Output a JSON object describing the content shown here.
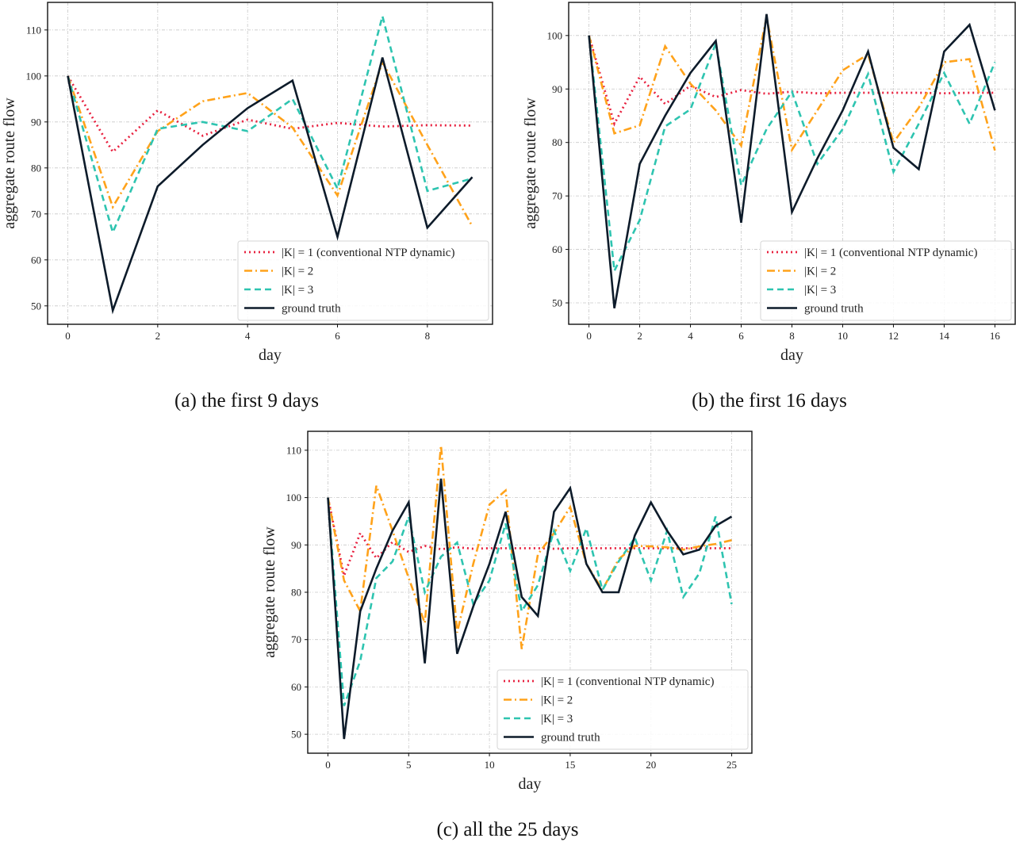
{
  "colors": {
    "k1": "#e8213f",
    "k2": "#ffa21a",
    "k3": "#2ec4b0",
    "ground_truth": "#0d1b2a",
    "grid": "#c8c8c8"
  },
  "legend_labels": {
    "k1": "|K| = 1 (conventional NTP dynamic)",
    "k2": "|K| = 2",
    "k3": "|K| = 3",
    "ground_truth": "ground truth"
  },
  "chart_data": [
    {
      "id": "a",
      "type": "line",
      "caption": "(a) the first 9 days",
      "xlabel": "day",
      "ylabel": "aggregate route flow",
      "xlim": [
        -0.45,
        9.45
      ],
      "ylim": [
        46,
        116
      ],
      "xticks": [
        0,
        2,
        4,
        6,
        8
      ],
      "yticks": [
        50,
        60,
        70,
        80,
        90,
        100,
        110
      ],
      "grid": true,
      "legend_position": "lower-right",
      "x": [
        0,
        1,
        2,
        3,
        4,
        5,
        6,
        7,
        8,
        9
      ],
      "series": [
        {
          "key": "k1",
          "name": "|K| = 1 (conventional NTP dynamic)",
          "style": "dotted",
          "values": [
            100,
            83.5,
            92.5,
            87,
            90.5,
            88.5,
            89.8,
            89,
            89.3,
            89.2
          ]
        },
        {
          "key": "k2",
          "name": "|K| = 2",
          "style": "dashdot",
          "values": [
            100,
            71.5,
            88,
            94.5,
            96.3,
            88.8,
            74,
            103,
            85,
            67.3
          ]
        },
        {
          "key": "k3",
          "name": "|K| = 3",
          "style": "dashed",
          "values": [
            100,
            66,
            88.5,
            90,
            88,
            95,
            75.5,
            113,
            75,
            77.7
          ]
        },
        {
          "key": "ground_truth",
          "name": "ground truth",
          "style": "solid",
          "values": [
            100,
            49,
            76,
            85,
            93,
            99,
            65,
            104,
            67,
            78
          ]
        }
      ]
    },
    {
      "id": "b",
      "type": "line",
      "caption": "(b) the first 16 days",
      "xlabel": "day",
      "ylabel": "aggregate route flow",
      "xlim": [
        -0.8,
        16.8
      ],
      "ylim": [
        46,
        106.2
      ],
      "xticks": [
        0,
        2,
        4,
        6,
        8,
        10,
        12,
        14,
        16
      ],
      "yticks": [
        50,
        60,
        70,
        80,
        90,
        100
      ],
      "grid": true,
      "legend_position": "lower-right",
      "x": [
        0,
        1,
        2,
        3,
        4,
        5,
        6,
        7,
        8,
        9,
        10,
        11,
        12,
        13,
        14,
        15,
        16
      ],
      "series": [
        {
          "key": "k1",
          "name": "|K| = 1 (conventional NTP dynamic)",
          "style": "dotted",
          "values": [
            100,
            83.5,
            92.3,
            87.2,
            90.6,
            88.5,
            89.8,
            89.1,
            89.5,
            89.2,
            89.3,
            89.3,
            89.3,
            89.3,
            89.2,
            89.3,
            89.3
          ]
        },
        {
          "key": "k2",
          "name": "|K| = 2",
          "style": "dashdot",
          "values": [
            100,
            81.7,
            83.2,
            98,
            91,
            86,
            79.4,
            103.5,
            78.6,
            86,
            93.5,
            96.5,
            80,
            86.5,
            95,
            95.6,
            78.5
          ]
        },
        {
          "key": "k3",
          "name": "|K| = 3",
          "style": "dashed",
          "values": [
            100,
            56,
            65.5,
            83,
            86.2,
            98.5,
            72,
            82.5,
            89.5,
            76,
            82.5,
            92.8,
            74.5,
            83.5,
            93,
            83.5,
            95
          ]
        },
        {
          "key": "ground_truth",
          "name": "ground truth",
          "style": "solid",
          "values": [
            100,
            49,
            76,
            85,
            93,
            99,
            65,
            104,
            67,
            77,
            86,
            97,
            79,
            75,
            97,
            102,
            86
          ]
        }
      ]
    },
    {
      "id": "c",
      "type": "line",
      "caption": "(c) all the 25 days",
      "xlabel": "day",
      "ylabel": "aggregate route flow",
      "xlim": [
        -1.25,
        26.25
      ],
      "ylim": [
        46,
        114
      ],
      "xticks": [
        0,
        5,
        10,
        15,
        20,
        25
      ],
      "yticks": [
        50,
        60,
        70,
        80,
        90,
        100,
        110
      ],
      "grid": true,
      "legend_position": "lower-right",
      "x": [
        0,
        1,
        2,
        3,
        4,
        5,
        6,
        7,
        8,
        9,
        10,
        11,
        12,
        13,
        14,
        15,
        16,
        17,
        18,
        19,
        20,
        21,
        22,
        23,
        24,
        25
      ],
      "series": [
        {
          "key": "k1",
          "name": "|K| = 1 (conventional NTP dynamic)",
          "style": "dotted",
          "values": [
            100,
            83.5,
            92.5,
            87.2,
            90.6,
            88.5,
            89.8,
            89.1,
            89.5,
            89.2,
            89.3,
            89.3,
            89.3,
            89.3,
            89.2,
            89.3,
            89.3,
            89.3,
            89.3,
            89.3,
            89.3,
            89.3,
            89.3,
            89.3,
            89.3,
            89.3
          ]
        },
        {
          "key": "k2",
          "name": "|K| = 2",
          "style": "dashdot",
          "values": [
            100,
            82.5,
            76,
            102.5,
            93,
            83,
            73.5,
            111,
            71.5,
            86,
            98.5,
            101.5,
            68,
            88,
            92.5,
            98,
            86,
            80.5,
            87,
            89.8,
            89.7,
            89.5,
            89,
            89.7,
            90.2,
            91
          ]
        },
        {
          "key": "k3",
          "name": "|K| = 3",
          "style": "dashed",
          "values": [
            100,
            56,
            65.5,
            83,
            86.5,
            96,
            80,
            87.5,
            90.5,
            77.5,
            82.5,
            94.5,
            76,
            81.5,
            93,
            84.5,
            93.5,
            80.5,
            86.5,
            91.5,
            82.5,
            93,
            79,
            84,
            96,
            77.5
          ]
        },
        {
          "key": "ground_truth",
          "name": "ground truth",
          "style": "solid",
          "values": [
            100,
            49,
            76,
            85,
            93,
            99,
            65,
            104,
            67,
            77,
            86,
            97,
            79,
            75,
            97,
            102,
            86,
            80,
            80,
            92,
            99,
            93,
            88,
            89,
            94,
            96
          ]
        }
      ]
    }
  ]
}
